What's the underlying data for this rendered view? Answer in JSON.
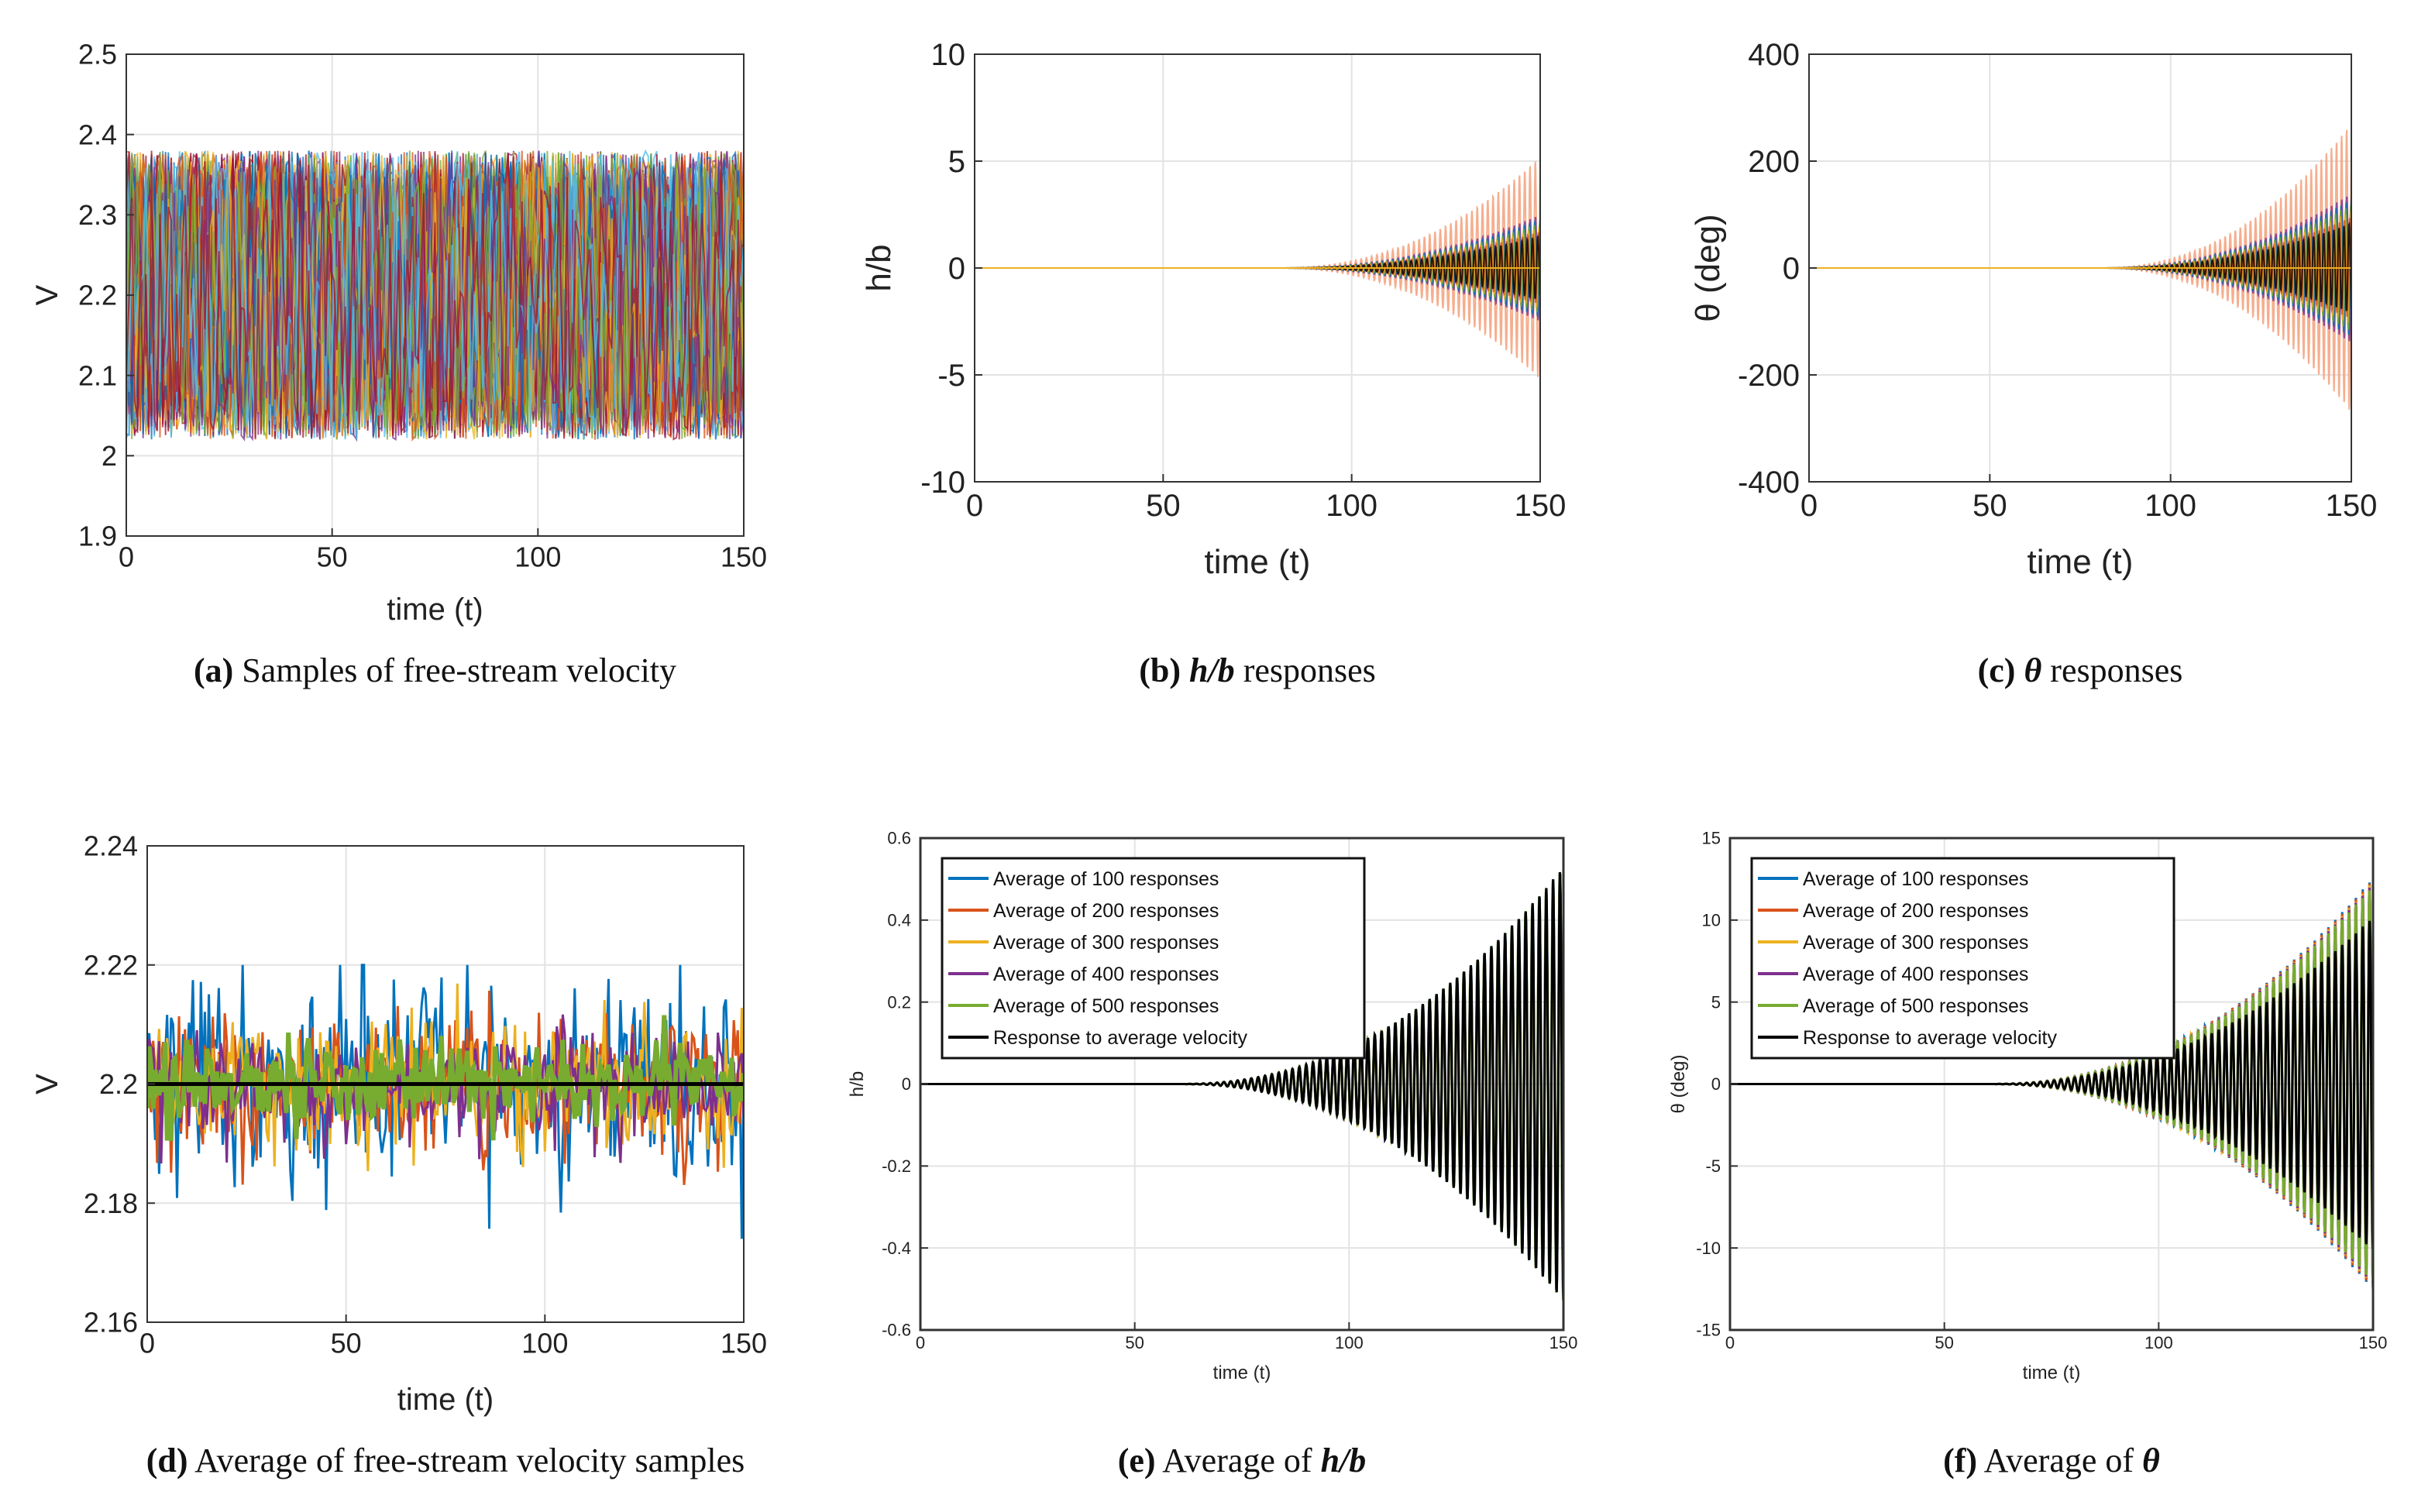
{
  "figure": {
    "captions": [
      {
        "id": "a",
        "letter": "(a)",
        "pre": " Samples of free-stream velocity",
        "math": "",
        "post": ""
      },
      {
        "id": "b",
        "letter": "(b)",
        "pre": " ",
        "math": "h/b",
        "post": " responses"
      },
      {
        "id": "c",
        "letter": "(c)",
        "pre": " ",
        "math": "θ",
        "post": " responses"
      },
      {
        "id": "d",
        "letter": "(d)",
        "pre": " Average of free-stream velocity samples",
        "math": "",
        "post": ""
      },
      {
        "id": "e",
        "letter": "(e)",
        "pre": " Average of ",
        "math": "h/b",
        "post": ""
      },
      {
        "id": "f",
        "letter": "(f)",
        "pre": " Average of ",
        "math": "θ",
        "post": ""
      }
    ]
  },
  "colors": {
    "blue": "#0072bd",
    "orange": "#d95319",
    "yellow": "#edb120",
    "purple": "#7e2f8e",
    "green": "#77ac30",
    "cyan": "#4dbeee",
    "red": "#a2142f",
    "black": "#000000",
    "salmon": "#f4a582"
  },
  "chart_data": [
    {
      "id": "a",
      "type": "line",
      "title": "",
      "xlabel": "time (t)",
      "ylabel": "V",
      "xlim": [
        0,
        150
      ],
      "ylim": [
        1.9,
        2.5
      ],
      "xticks": [
        0,
        50,
        100,
        150
      ],
      "yticks": [
        1.9,
        2,
        2.1,
        2.2,
        2.3,
        2.4,
        2.5
      ],
      "ytick_labels": [
        "1.9",
        "2",
        "2.1",
        "2.2",
        "2.3",
        "2.4",
        "2.5"
      ],
      "series_summary": {
        "kind": "uniform_noise_band",
        "mean": 2.2,
        "lower": 2.02,
        "upper": 2.38,
        "samples": 500
      },
      "grid": true
    },
    {
      "id": "b",
      "type": "line",
      "title": "",
      "xlabel": "time (t)",
      "ylabel": "h/b",
      "xlim": [
        0,
        150
      ],
      "ylim": [
        -10,
        10
      ],
      "xticks": [
        0,
        50,
        100,
        150
      ],
      "yticks": [
        -10,
        -5,
        0,
        5,
        10
      ],
      "ytick_labels": [
        "-10",
        "-5",
        "0",
        "5",
        "10"
      ],
      "series_summary": {
        "kind": "growing_oscillation",
        "envelope_start_t": 80,
        "envelope_end_value": 5.2,
        "inner_envelope_end_value": 2.5
      },
      "grid": true
    },
    {
      "id": "c",
      "type": "line",
      "title": "",
      "xlabel": "time (t)",
      "ylabel": "θ (deg)",
      "xlim": [
        0,
        150
      ],
      "ylim": [
        -400,
        400
      ],
      "xticks": [
        0,
        50,
        100,
        150
      ],
      "yticks": [
        -400,
        -200,
        0,
        200,
        400
      ],
      "ytick_labels": [
        "-400",
        "-200",
        "0",
        "200",
        "400"
      ],
      "series_summary": {
        "kind": "growing_oscillation",
        "envelope_start_t": 80,
        "envelope_end_value": 270,
        "inner_envelope_end_value": 140
      },
      "grid": true
    },
    {
      "id": "d",
      "type": "line",
      "title": "",
      "xlabel": "time (t)",
      "ylabel": "V",
      "xlim": [
        0,
        150
      ],
      "ylim": [
        2.16,
        2.24
      ],
      "xticks": [
        0,
        50,
        100,
        150
      ],
      "yticks": [
        2.16,
        2.18,
        2.2,
        2.22,
        2.24
      ],
      "ytick_labels": [
        "2.16",
        "2.18",
        "2.2",
        "2.22",
        "2.24"
      ],
      "series_summary": {
        "kind": "average_noise",
        "mean": 2.2,
        "max_dev": 0.02
      },
      "grid": true
    },
    {
      "id": "e",
      "type": "line",
      "title": "",
      "xlabel": "time (t)",
      "ylabel": "h/b",
      "xlim": [
        0,
        150
      ],
      "ylim": [
        -0.6,
        0.6
      ],
      "xticks": [
        0,
        50,
        100,
        150
      ],
      "yticks": [
        -0.6,
        -0.4,
        -0.2,
        0,
        0.2,
        0.4,
        0.6
      ],
      "ytick_labels": [
        "-0.6",
        "-0.4",
        "-0.2",
        "0",
        "0.2",
        "0.4",
        "0.6"
      ],
      "legend": [
        "Average of 100 responses",
        "Average of 200 responses",
        "Average of 300 responses",
        "Average of 400 responses",
        "Average of 500 responses",
        "Response to average velocity"
      ],
      "legend_loc": "top-left",
      "series_summary": {
        "kind": "growing_oscillation",
        "envelope_start_t": 60,
        "envelope_end_value": 0.53
      },
      "grid": true
    },
    {
      "id": "f",
      "type": "line",
      "title": "",
      "xlabel": "time (t)",
      "ylabel": "θ (deg)",
      "xlim": [
        0,
        150
      ],
      "ylim": [
        -15,
        15
      ],
      "xticks": [
        0,
        50,
        100,
        150
      ],
      "yticks": [
        -15,
        -10,
        -5,
        0,
        5,
        10,
        15
      ],
      "ytick_labels": [
        "-15",
        "-10",
        "-5",
        "0",
        "5",
        "10",
        "15"
      ],
      "legend": [
        "Average of 100 responses",
        "Average of 200 responses",
        "Average of 300 responses",
        "Average of 400 responses",
        "Average of 500 responses",
        "Response to average velocity"
      ],
      "legend_loc": "top-left",
      "series_summary": {
        "kind": "growing_oscillation",
        "envelope_start_t": 60,
        "envelope_end_value": 12
      },
      "grid": true
    }
  ]
}
